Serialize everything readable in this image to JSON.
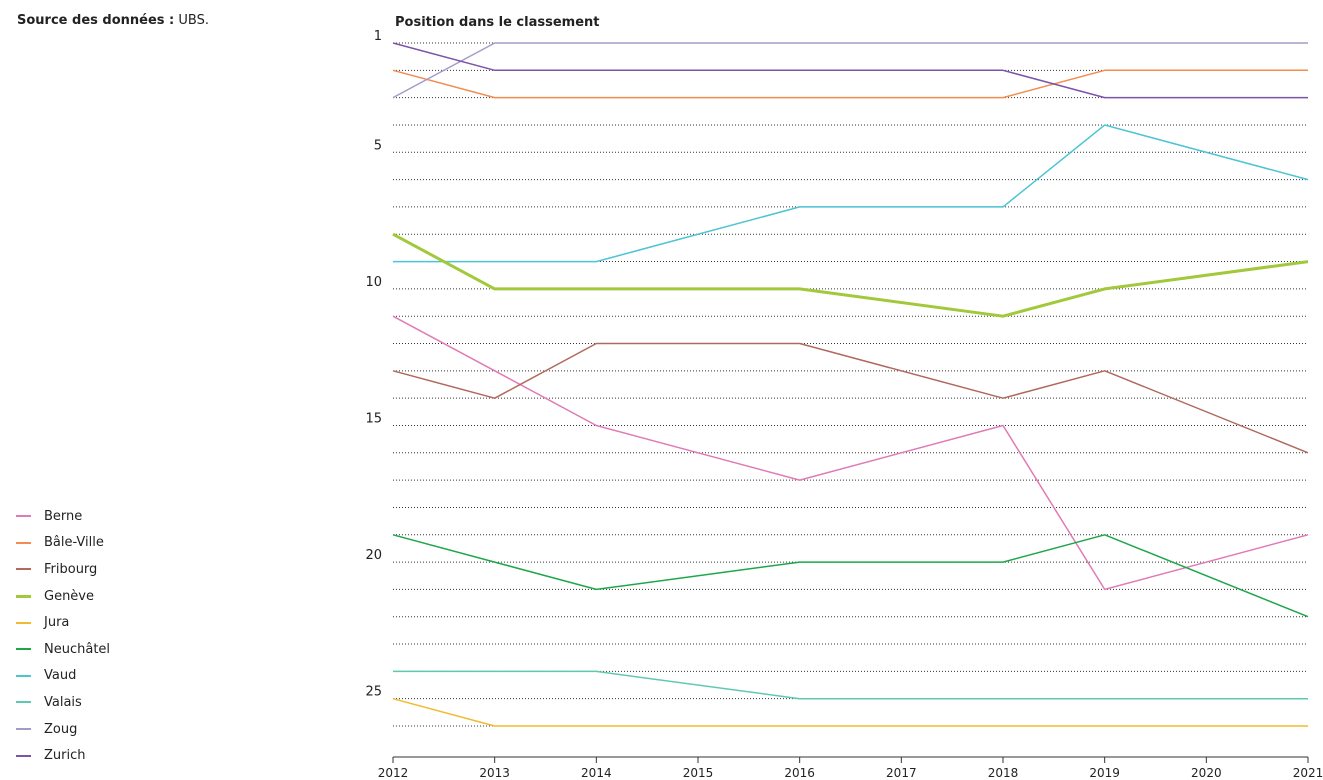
{
  "source": {
    "label": "Source des données :",
    "value": "UBS."
  },
  "chart_data": {
    "type": "line",
    "title": "Position dans le classement",
    "xlabel": "",
    "ylabel": "",
    "x": [
      2012,
      2013,
      2014,
      2015,
      2016,
      2017,
      2018,
      2019,
      2020,
      2021
    ],
    "xticks": [
      "2012",
      "2013",
      "2014",
      "2015",
      "2016",
      "2017",
      "2018",
      "2019",
      "2020",
      "2021"
    ],
    "ylim": [
      1,
      26
    ],
    "y_inverted": true,
    "yticks": [
      1,
      5,
      10,
      15,
      20,
      25
    ],
    "grid": "dotted horizontal at every rank",
    "legend_position": "bottom-left",
    "series": [
      {
        "name": "Berne",
        "color": "#e07bb5",
        "points": [
          [
            2012,
            11
          ],
          [
            2013,
            13
          ],
          [
            2014,
            15
          ],
          [
            2016,
            17
          ],
          [
            2018,
            15
          ],
          [
            2019,
            21
          ],
          [
            2021,
            19
          ]
        ]
      },
      {
        "name": "Bâle-Ville",
        "color": "#f28c4f",
        "points": [
          [
            2012,
            2
          ],
          [
            2013,
            3
          ],
          [
            2018,
            3
          ],
          [
            2019,
            2
          ],
          [
            2021,
            2
          ]
        ]
      },
      {
        "name": "Fribourg",
        "color": "#b06a5d",
        "points": [
          [
            2012,
            13
          ],
          [
            2013,
            14
          ],
          [
            2014,
            12
          ],
          [
            2016,
            12
          ],
          [
            2018,
            14
          ],
          [
            2019,
            13
          ],
          [
            2021,
            16
          ]
        ]
      },
      {
        "name": "Genève",
        "color": "#a2c83c",
        "bold": true,
        "points": [
          [
            2012,
            8
          ],
          [
            2013,
            10
          ],
          [
            2016,
            10
          ],
          [
            2018,
            11
          ],
          [
            2019,
            10
          ],
          [
            2021,
            9
          ]
        ]
      },
      {
        "name": "Jura",
        "color": "#f2bb2f",
        "points": [
          [
            2012,
            25
          ],
          [
            2013,
            26
          ],
          [
            2021,
            26
          ]
        ]
      },
      {
        "name": "Neuchâtel",
        "color": "#1fa64a",
        "points": [
          [
            2012,
            19
          ],
          [
            2013,
            20
          ],
          [
            2014,
            21
          ],
          [
            2016,
            20
          ],
          [
            2018,
            20
          ],
          [
            2019,
            19
          ],
          [
            2021,
            22
          ]
        ]
      },
      {
        "name": "Vaud",
        "color": "#4cc4d4",
        "points": [
          [
            2012,
            9
          ],
          [
            2014,
            9
          ],
          [
            2016,
            7
          ],
          [
            2018,
            7
          ],
          [
            2019,
            4
          ],
          [
            2021,
            6
          ]
        ]
      },
      {
        "name": "Valais",
        "color": "#5fc9b0",
        "points": [
          [
            2012,
            24
          ],
          [
            2014,
            24
          ],
          [
            2016,
            25
          ],
          [
            2021,
            25
          ]
        ]
      },
      {
        "name": "Zoug",
        "color": "#a49bc9",
        "points": [
          [
            2012,
            3
          ],
          [
            2013,
            1
          ],
          [
            2021,
            1
          ]
        ]
      },
      {
        "name": "Zurich",
        "color": "#7b54a8",
        "points": [
          [
            2012,
            1
          ],
          [
            2013,
            2
          ],
          [
            2018,
            2
          ],
          [
            2019,
            3
          ],
          [
            2021,
            3
          ]
        ]
      }
    ]
  }
}
